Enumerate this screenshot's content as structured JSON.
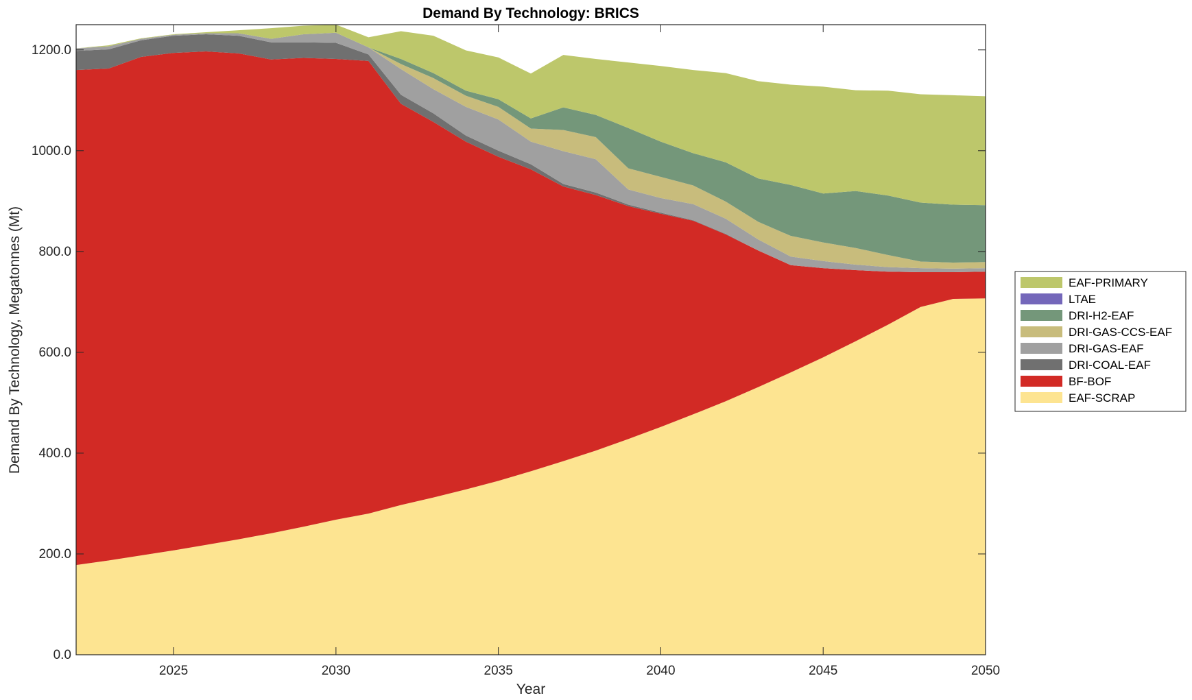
{
  "chart_data": {
    "type": "area",
    "stacked": true,
    "title": "Demand By Technology: BRICS",
    "xlabel": "Year",
    "ylabel": "Demand By Technology, Megatonnes (Mt)",
    "xlim": [
      2022,
      2050
    ],
    "ylim": [
      0,
      1250
    ],
    "xticks": [
      2025,
      2030,
      2035,
      2040,
      2045,
      2050
    ],
    "yticks": [
      0,
      200,
      400,
      600,
      800,
      1000,
      1200
    ],
    "ytick_labels": [
      "0.0",
      "200.0",
      "400.0",
      "600.0",
      "800.0",
      "1000.0",
      "1200.0"
    ],
    "grid": false,
    "legend_position": "right",
    "x": [
      2022,
      2023,
      2024,
      2025,
      2026,
      2027,
      2028,
      2029,
      2030,
      2031,
      2032,
      2033,
      2034,
      2035,
      2036,
      2037,
      2038,
      2039,
      2040,
      2041,
      2042,
      2043,
      2044,
      2045,
      2046,
      2047,
      2048,
      2049,
      2050
    ],
    "series": [
      {
        "name": "EAF-SCRAP",
        "color": "#FDE491",
        "values": [
          178,
          187,
          197,
          207,
          218,
          229,
          241,
          254,
          268,
          280,
          297,
          312,
          328,
          345,
          364,
          384,
          405,
          428,
          452,
          477,
          503,
          531,
          560,
          590,
          622,
          655,
          690,
          706,
          707
        ]
      },
      {
        "name": "BF-BOF",
        "color": "#D22A25",
        "values": [
          982,
          976,
          989,
          987,
          979,
          964,
          940,
          930,
          914,
          898,
          796,
          745,
          690,
          643,
          599,
          545,
          507,
          462,
          423,
          384,
          331,
          271,
          213,
          177,
          141,
          105,
          69,
          53,
          53
        ]
      },
      {
        "name": "DRI-COAL-EAF",
        "color": "#707070",
        "values": [
          38,
          38,
          33,
          34,
          34,
          35,
          34,
          31,
          32,
          13,
          18,
          17,
          12,
          12,
          10,
          5,
          5,
          3,
          2,
          1,
          1,
          0,
          0,
          0,
          0,
          0,
          0,
          0,
          0
        ]
      },
      {
        "name": "DRI-GAS-EAF",
        "color": "#A0A0A0",
        "values": [
          5,
          6,
          3,
          2,
          2,
          5,
          7,
          16,
          20,
          14,
          51,
          48,
          57,
          62,
          45,
          65,
          66,
          30,
          29,
          32,
          30,
          22,
          17,
          14,
          11,
          9,
          8,
          7,
          7
        ]
      },
      {
        "name": "DRI-GAS-CCS-EAF",
        "color": "#C8BC7C",
        "values": [
          0,
          0,
          0,
          0,
          0,
          0,
          0,
          0,
          0,
          0,
          10,
          22,
          22,
          25,
          26,
          42,
          44,
          42,
          42,
          37,
          34,
          35,
          41,
          37,
          33,
          24,
          13,
          12,
          12
        ]
      },
      {
        "name": "DRI-H2-EAF",
        "color": "#74977A",
        "values": [
          0,
          0,
          0,
          0,
          0,
          0,
          0,
          0,
          0,
          0,
          10,
          10,
          10,
          15,
          20,
          45,
          44,
          80,
          70,
          64,
          78,
          86,
          101,
          97,
          113,
          118,
          117,
          115,
          113
        ]
      },
      {
        "name": "LTAE",
        "color": "#7467BA",
        "values": [
          0,
          0,
          0,
          0,
          0,
          0,
          0,
          0,
          0,
          0,
          0,
          0,
          0,
          0,
          0,
          0,
          0,
          0,
          0,
          0,
          0,
          0,
          0,
          0,
          0,
          0,
          0,
          0,
          0
        ]
      },
      {
        "name": "EAF-PRIMARY",
        "color": "#BDC76B",
        "values": [
          0,
          2,
          1,
          1,
          2,
          6,
          21,
          17,
          16,
          20,
          55,
          74,
          80,
          83,
          89,
          104,
          111,
          130,
          150,
          165,
          177,
          193,
          199,
          212,
          200,
          208,
          215,
          217,
          216
        ]
      }
    ]
  }
}
